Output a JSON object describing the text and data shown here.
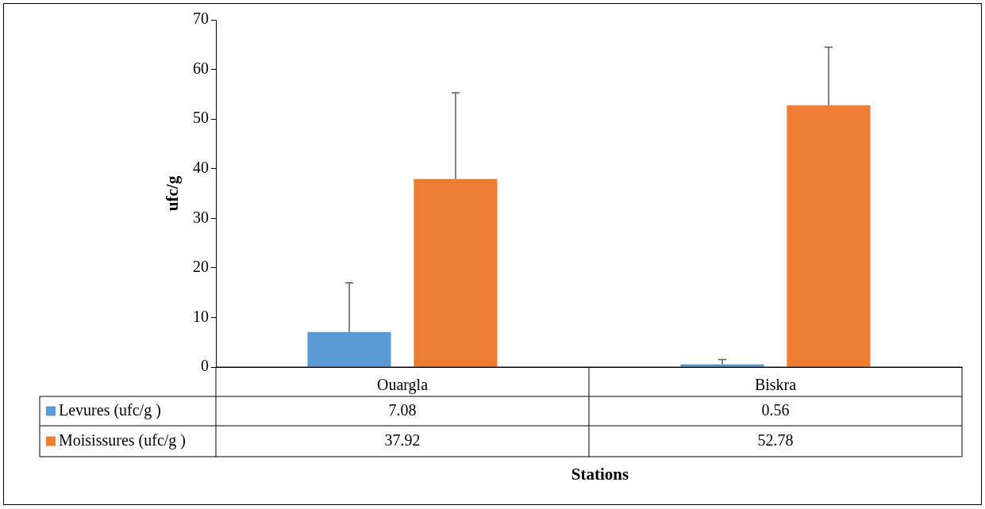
{
  "chart_data": {
    "type": "bar",
    "xlabel": "Stations",
    "ylabel": "ufc/g",
    "categories": [
      "Ouargla",
      "Biskra"
    ],
    "series": [
      {
        "name": "Levures (ufc/g )",
        "color": "#5b9bd5",
        "values": [
          7.08,
          0.56
        ],
        "errors": [
          [
            7.08,
            17
          ],
          [
            0.56,
            1.5
          ]
        ]
      },
      {
        "name": "Moisissures (ufc/g )",
        "color": "#ed7d31",
        "values": [
          37.92,
          52.78
        ],
        "errors": [
          [
            37.92,
            55.3
          ],
          [
            52.78,
            64.5
          ]
        ]
      }
    ],
    "ylim": [
      0,
      70
    ],
    "yticks": [
      0,
      10,
      20,
      30,
      40,
      50,
      60,
      70
    ],
    "grid": false,
    "legend": "bottom",
    "data_labels": true
  }
}
